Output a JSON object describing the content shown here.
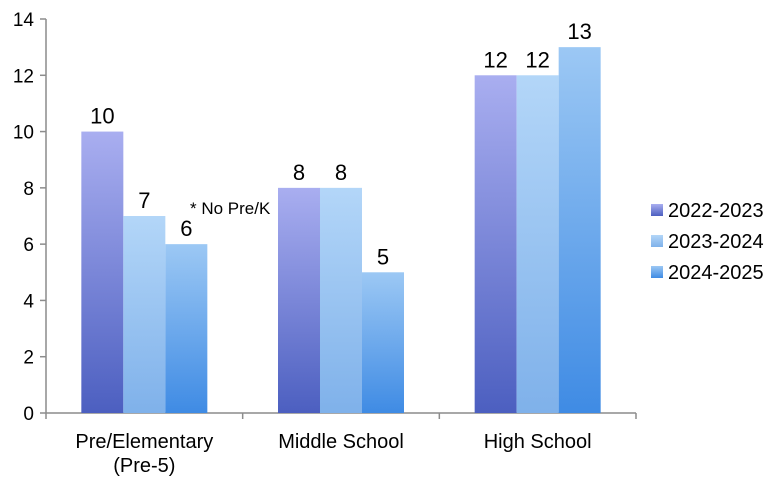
{
  "chart_data": {
    "type": "bar",
    "categories": [
      "Pre/Elementary\n(Pre-5)",
      "Middle School",
      "High School"
    ],
    "series": [
      {
        "name": "2022-2023",
        "values": [
          10,
          8,
          12
        ],
        "color_top": "#a9aef0",
        "color_bottom": "#4c5fc0"
      },
      {
        "name": "2023-2024",
        "values": [
          7,
          8,
          12
        ],
        "color_top": "#b3d6f8",
        "color_bottom": "#7fb1ea"
      },
      {
        "name": "2024-2025",
        "values": [
          6,
          5,
          13
        ],
        "color_top": "#9cc8f4",
        "color_bottom": "#3f8be4"
      }
    ],
    "ylim": [
      0,
      14
    ],
    "yticks": [
      0,
      2,
      4,
      6,
      8,
      10,
      12,
      14
    ],
    "title": "",
    "xlabel": "",
    "ylabel": "",
    "legend_position": "right",
    "grid": false,
    "annotation": "* No Pre/K"
  }
}
